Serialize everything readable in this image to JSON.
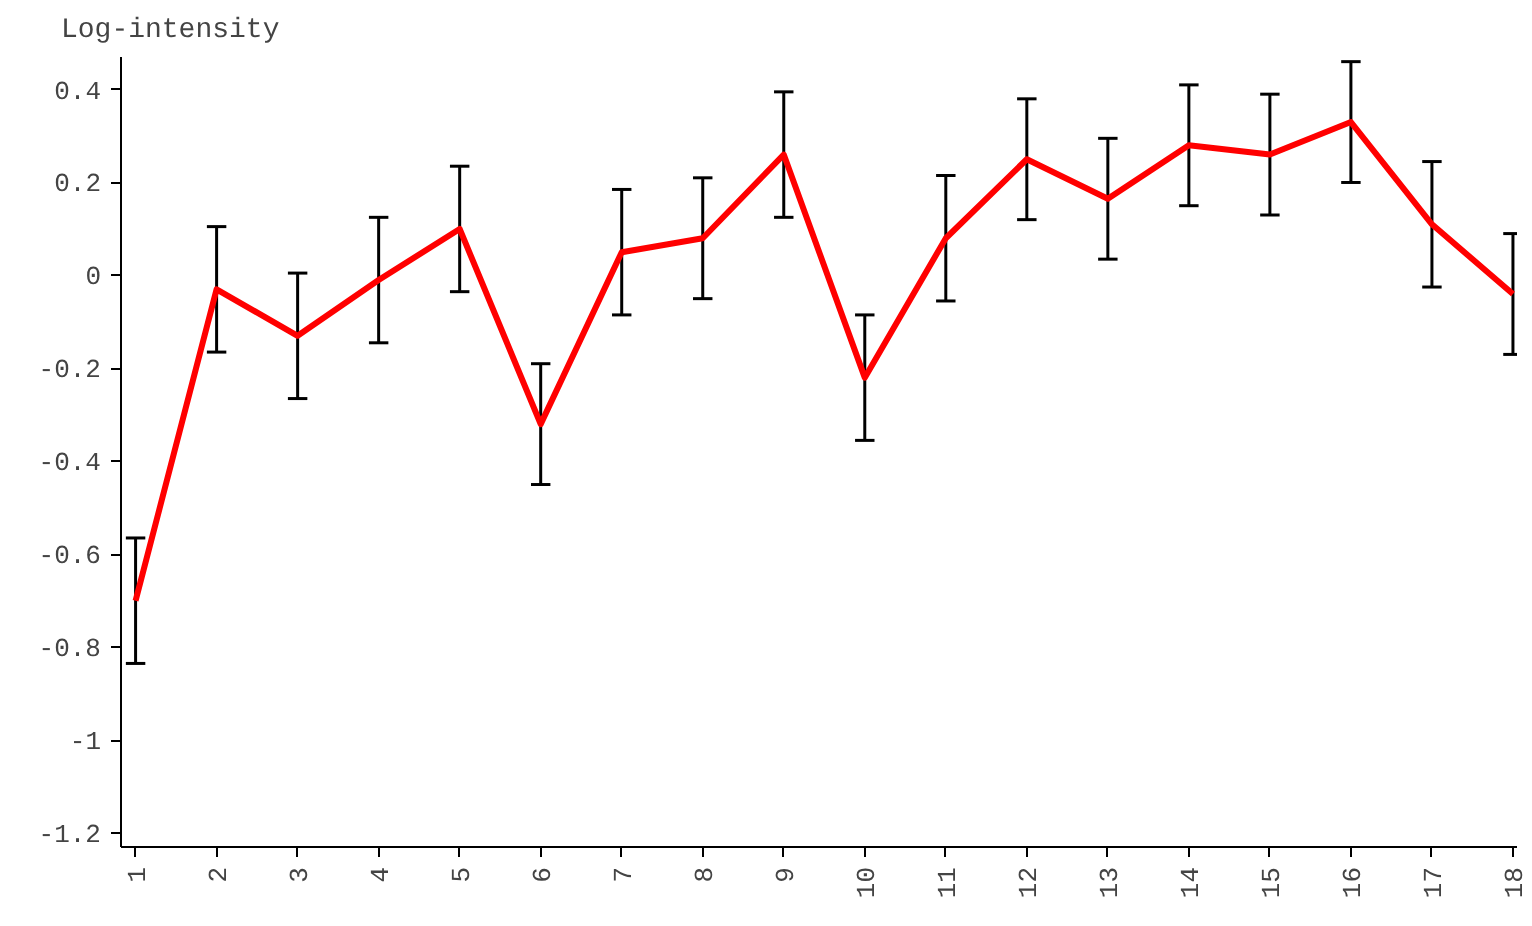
{
  "chart_data": {
    "type": "line",
    "ylabel": "Log-intensity",
    "categories": [
      "1",
      "2",
      "3",
      "4",
      "5",
      "6",
      "7",
      "8",
      "9",
      "10",
      "11",
      "12",
      "13",
      "14",
      "15",
      "16",
      "17",
      "18"
    ],
    "series": [
      {
        "color": "#ff0000",
        "values": [
          -0.7,
          -0.03,
          -0.13,
          -0.01,
          0.1,
          -0.32,
          0.05,
          0.08,
          0.26,
          -0.22,
          0.08,
          0.25,
          0.165,
          0.28,
          0.26,
          0.33,
          0.11,
          -0.04
        ],
        "errors": [
          0.135,
          0.135,
          0.135,
          0.135,
          0.135,
          0.13,
          0.135,
          0.13,
          0.135,
          0.135,
          0.135,
          0.13,
          0.13,
          0.13,
          0.13,
          0.13,
          0.135,
          0.13
        ]
      }
    ],
    "ylim": [
      -1.23,
      0.47
    ],
    "yticks": [
      0.4,
      0.2,
      0,
      -0.2,
      -0.4,
      -0.6,
      -0.8,
      -1,
      -1.2
    ],
    "grid": false,
    "marker": "none",
    "line_style": "solid"
  }
}
